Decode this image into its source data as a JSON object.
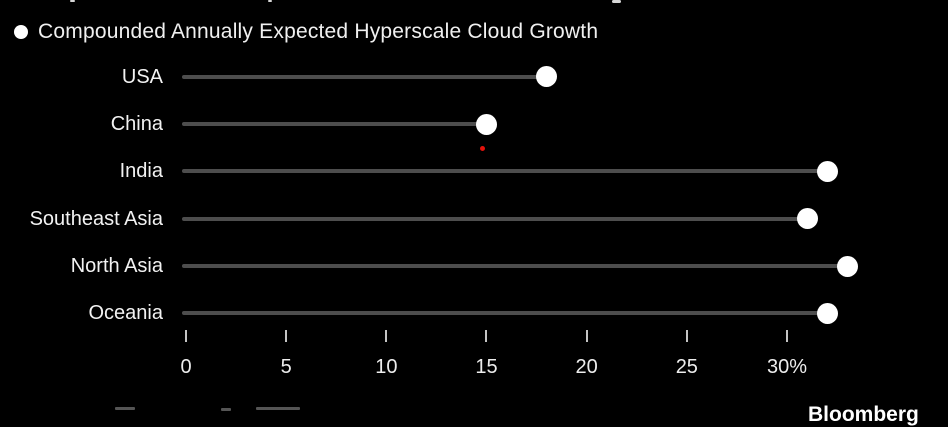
{
  "page": {
    "background": "#000000",
    "text_color": "#f2f2f2"
  },
  "legend": {
    "marker": "circle",
    "marker_color": "#ffffff",
    "label": "Compounded Annually Expected Hyperscale Cloud Growth"
  },
  "footer": {
    "brand": "Bloomberg"
  },
  "chart_data": {
    "type": "scatter",
    "subtype": "horizontal-dot-plot",
    "title": "",
    "series_name": "Compounded Annually Expected Hyperscale Cloud Growth",
    "categories": [
      "USA",
      "China",
      "India",
      "Southeast Asia",
      "North Asia",
      "Oceania"
    ],
    "values": [
      18,
      15,
      32,
      31,
      33,
      32
    ],
    "unit": "%",
    "x_ticks": [
      0,
      5,
      10,
      15,
      20,
      25,
      30
    ],
    "x_tick_labels": [
      "0",
      "5",
      "10",
      "15",
      "20",
      "25",
      "30%"
    ],
    "xlim": [
      0,
      34
    ],
    "grid": false,
    "legend_position": "top-left",
    "marker_color": "#ffffff",
    "stem_color": "#4d4d4d",
    "annotations": [
      {
        "type": "point",
        "x": 14.8,
        "row": "China",
        "offset": "below",
        "color": "#e3120b"
      }
    ]
  }
}
